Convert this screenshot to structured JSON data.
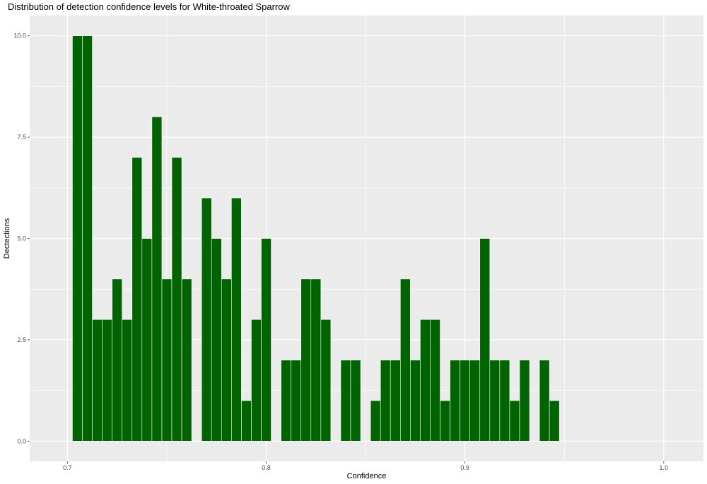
{
  "chart_data": {
    "type": "bar",
    "title": "Distribution of detection confidence levels for White-throated Sparrow",
    "xlabel": "Confidence",
    "ylabel": "Dectections",
    "xlim": [
      0.681,
      1.02
    ],
    "ylim": [
      -0.5,
      10.5
    ],
    "bin_width": 0.005,
    "x_ticks": [
      0.7,
      0.8,
      0.9,
      1.0
    ],
    "x_tick_labels": [
      "0.7",
      "0.8",
      "0.9",
      "1.0"
    ],
    "y_ticks": [
      0,
      2.5,
      5,
      7.5,
      10
    ],
    "y_tick_labels": [
      "0.0",
      "2.5",
      "5.0",
      "7.5",
      "10.0"
    ],
    "grid": true,
    "bar_color": "#006400",
    "panel_color": "#ebebeb",
    "x": [
      0.705,
      0.71,
      0.715,
      0.72,
      0.725,
      0.73,
      0.735,
      0.74,
      0.745,
      0.75,
      0.755,
      0.76,
      0.765,
      0.77,
      0.775,
      0.78,
      0.785,
      0.79,
      0.795,
      0.8,
      0.805,
      0.81,
      0.815,
      0.82,
      0.825,
      0.83,
      0.835,
      0.84,
      0.845,
      0.85,
      0.855,
      0.86,
      0.865,
      0.87,
      0.875,
      0.88,
      0.885,
      0.89,
      0.895,
      0.9,
      0.905,
      0.91,
      0.915,
      0.92,
      0.925,
      0.93,
      0.935,
      0.94,
      0.945
    ],
    "values": [
      10,
      10,
      3,
      3,
      4,
      3,
      7,
      5,
      8,
      4,
      7,
      4,
      0,
      6,
      5,
      4,
      6,
      1,
      3,
      5,
      0,
      2,
      2,
      4,
      4,
      3,
      0,
      2,
      2,
      0,
      1,
      2,
      2,
      4,
      2,
      3,
      3,
      1,
      2,
      2,
      2,
      5,
      2,
      2,
      1,
      2,
      0,
      2,
      1
    ]
  }
}
